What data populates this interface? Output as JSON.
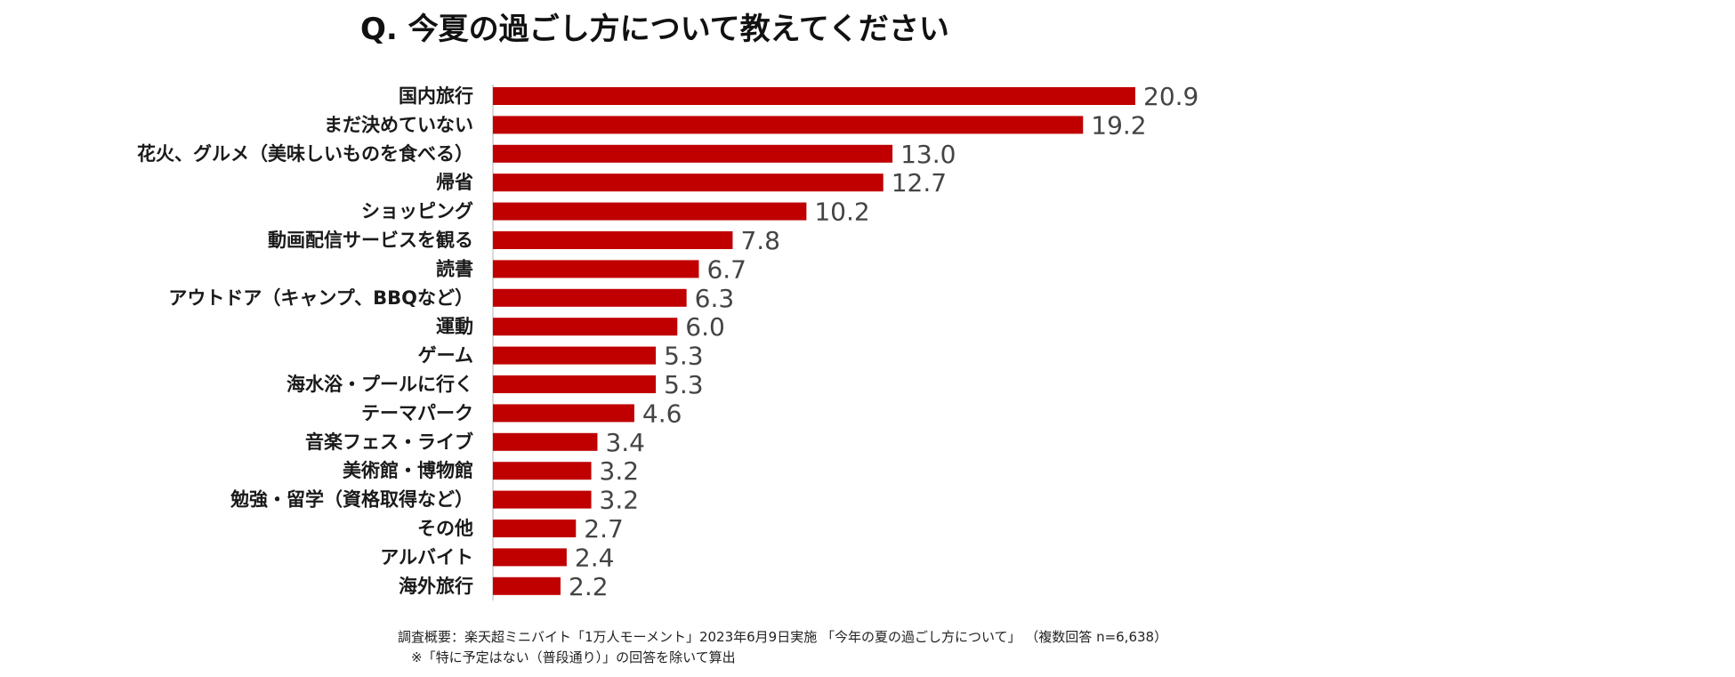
{
  "chart_data": {
    "type": "bar",
    "orientation": "horizontal",
    "title": "Q. 今夏の過ごし方について教えてください",
    "unit": "",
    "categories": [
      "国内旅行",
      "まだ決めていない",
      "花火、グルメ（美味しいものを食べる）",
      "帰省",
      "ショッピング",
      "動画配信サービスを観る",
      "読書",
      "アウトドア（キャンプ、BBQなど）",
      "運動",
      "ゲーム",
      "海水浴・プールに行く",
      "テーマパーク",
      "音楽フェス・ライブ",
      "美術館・博物館",
      "勉強・留学（資格取得など）",
      "その他",
      "アルバイト",
      "海外旅行"
    ],
    "values": [
      20.9,
      19.2,
      13.0,
      12.7,
      10.2,
      7.8,
      6.7,
      6.3,
      6.0,
      5.3,
      5.3,
      4.6,
      3.4,
      3.2,
      3.2,
      2.7,
      2.4,
      2.2
    ],
    "value_labels": [
      "20.9",
      "19.2",
      "13.0",
      "12.7",
      "10.2",
      "7.8",
      "6.7",
      "6.3",
      "6.0",
      "5.3",
      "5.3",
      "4.6",
      "3.4",
      "3.2",
      "3.2",
      "2.7",
      "2.4",
      "2.2"
    ],
    "xlim": [
      0,
      20.9
    ],
    "grid": false,
    "legend": "none",
    "bar_color": "#c00000",
    "footnotes": [
      "調査概要：楽天超ミニバイト「1万人モーメント」2023年6月9日実施 「今年の夏の過ごし方について」 （複数回答 n=6,638）",
      "※「特に予定はない（普段通り）」の回答を除いて算出"
    ]
  }
}
